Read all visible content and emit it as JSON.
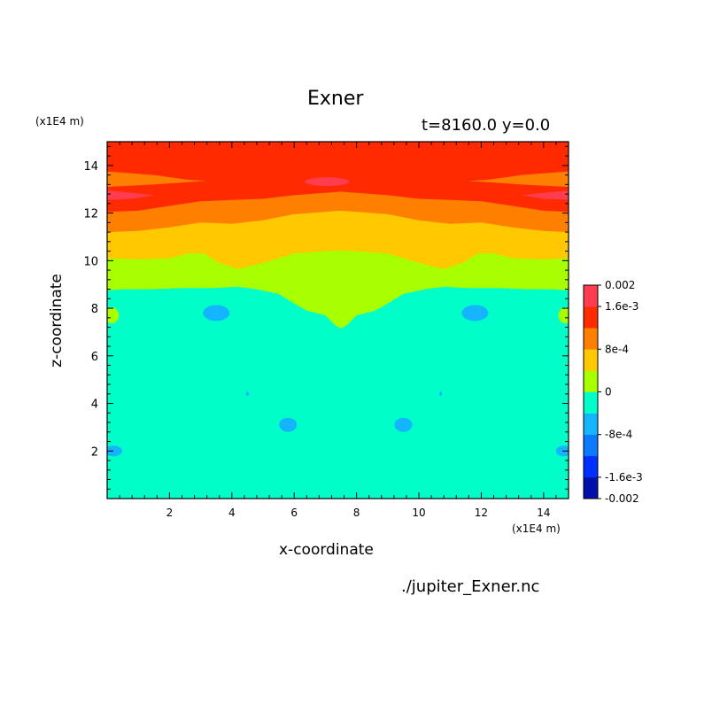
{
  "chart_data": {
    "type": "heatmap",
    "title": "Exner",
    "subtitle": "t=8160.0 y=0.0",
    "xlabel": "x-coordinate",
    "ylabel": "z-coordinate",
    "x_unit": "(x1E4 m)",
    "y_unit": "(x1E4 m)",
    "source_file": "./jupiter_Exner.nc",
    "xlim": [
      0,
      14.8
    ],
    "ylim": [
      0,
      15
    ],
    "x_ticks": [
      "2",
      "4",
      "6",
      "8",
      "10",
      "12",
      "14"
    ],
    "y_ticks": [
      "2",
      "4",
      "6",
      "8",
      "10",
      "12",
      "14"
    ],
    "colorbar": {
      "tick_labels": [
        "0.002",
        "1.6e-3",
        "8e-4",
        "0",
        "-8e-4",
        "-1.6e-3",
        "-0.002"
      ],
      "levels": [
        -0.002,
        -0.0016,
        -0.0012,
        -0.0008,
        -0.0004,
        0,
        0.0004,
        0.0008,
        0.0012,
        0.0016,
        0.002
      ],
      "colors": [
        "#0010a8",
        "#0030ff",
        "#0a7aff",
        "#14b4ff",
        "#00ffc8",
        "#a8ff00",
        "#ffc800",
        "#ff8000",
        "#ff2a00",
        "#ff3c50"
      ]
    },
    "bands": [
      {
        "range": [
          0.0016,
          0.002
        ],
        "color": "#ff3c50",
        "region": "small lens-shaped patches near z=12.7-13.3"
      },
      {
        "range": [
          0.0012,
          0.0016
        ],
        "color": "#ff2a00",
        "region": "top layer above z~12.2"
      },
      {
        "range": [
          0.0008,
          0.0012
        ],
        "color": "#ff8000",
        "region": "z~11 to 12.5"
      },
      {
        "range": [
          0.0004,
          0.0008
        ],
        "color": "#ffc800",
        "region": "z~9.8 to 11.5"
      },
      {
        "range": [
          0,
          0.0004
        ],
        "color": "#a8ff00",
        "region": "z~7.2 to 10.2, dips near x=7.5"
      },
      {
        "range": [
          -0.0004,
          0
        ],
        "color": "#00ffc8",
        "region": "bulk of domain below z~8.8"
      },
      {
        "range": [
          -0.0008,
          -0.0004
        ],
        "color": "#14b4ff",
        "region": "small blobs near (3.5,7.8),(11.8,7.8),(5.8,3.1),(9.5,3.1),(0.2,2.0),(14.6,2.0)"
      }
    ]
  }
}
